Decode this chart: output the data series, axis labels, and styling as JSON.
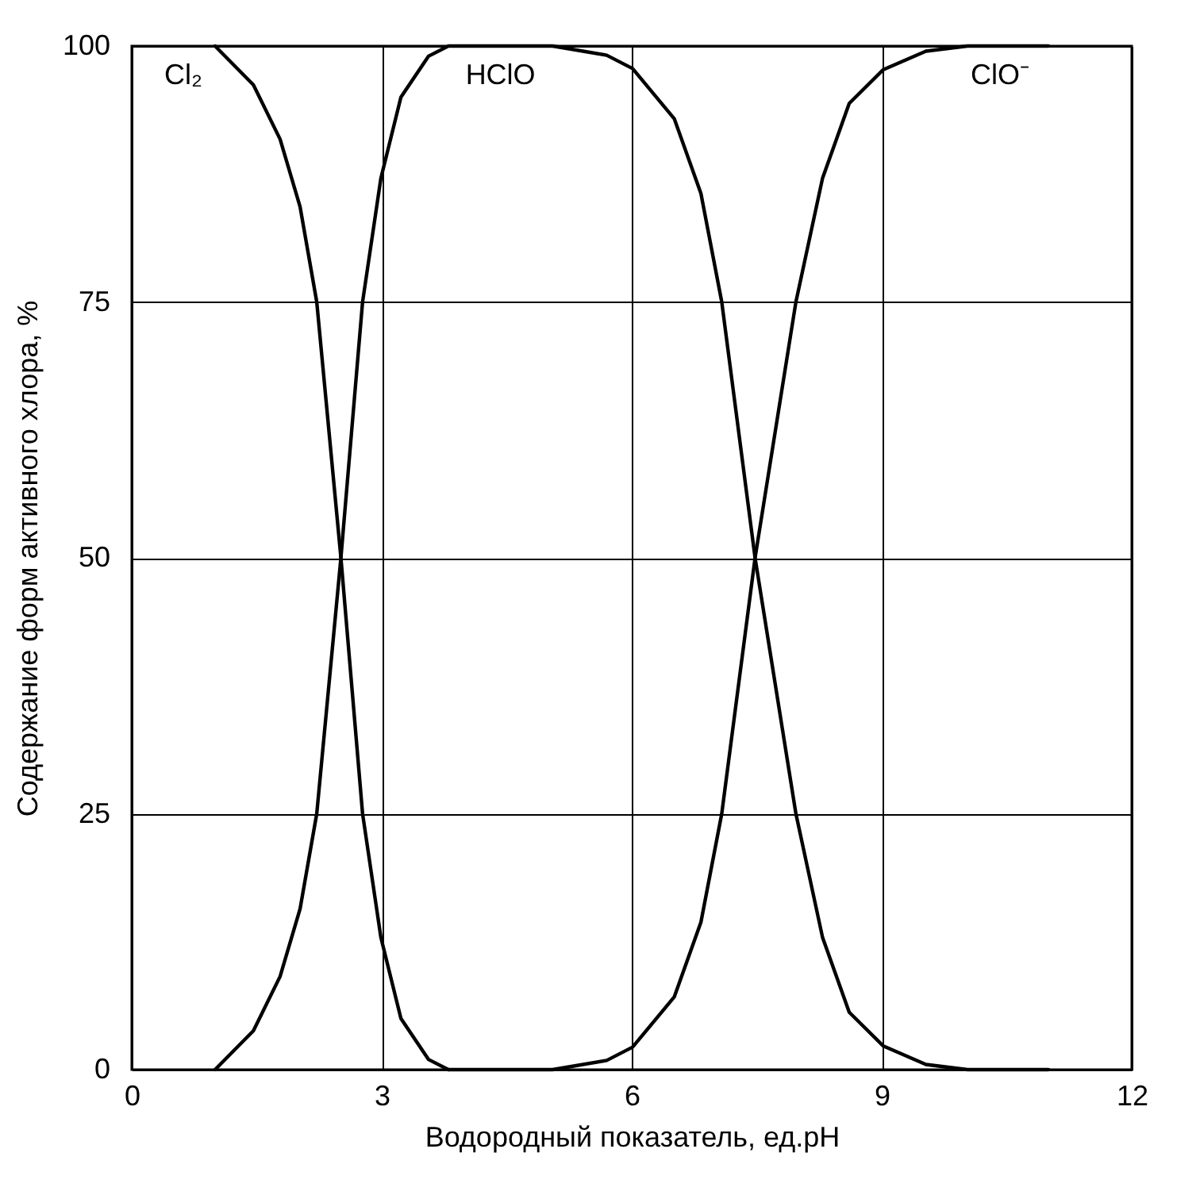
{
  "chart_data": {
    "type": "line",
    "xlabel": "Водородный показатель, ед.pH",
    "ylabel": "Содержание форм активного хлора, %",
    "xlim": [
      0,
      12
    ],
    "ylim": [
      0,
      100
    ],
    "xticks": [
      0,
      3,
      6,
      9,
      12
    ],
    "yticks": [
      0,
      25,
      50,
      75,
      100
    ],
    "grid": true,
    "line_style": "solid",
    "series": [
      {
        "name": "Cl₂",
        "color": "#000000",
        "x": [
          1.0,
          1.46,
          1.78,
          2.02,
          2.22,
          2.51,
          2.77,
          2.99,
          3.23,
          3.56,
          3.8
        ],
        "values": [
          100,
          96.2,
          90.9,
          84.3,
          75,
          50,
          25,
          12.9,
          5,
          1,
          0
        ]
      },
      {
        "name": "HClO",
        "color": "#000000",
        "x": [
          1.0,
          1.46,
          1.78,
          2.02,
          2.22,
          2.51,
          2.77,
          2.99,
          3.23,
          3.56,
          3.8,
          5.05,
          5.7,
          6.01,
          6.51,
          6.83,
          7.08,
          7.48,
          7.97,
          8.29,
          8.61,
          9.02,
          9.53,
          10.03,
          11.0
        ],
        "values": [
          0,
          3.8,
          9.1,
          15.7,
          25,
          50,
          75,
          87.1,
          95,
          99,
          100,
          100,
          99.1,
          97.8,
          92.9,
          85.6,
          75,
          50,
          25,
          12.9,
          5.6,
          2.3,
          0.5,
          0,
          0
        ]
      },
      {
        "name": "ClO⁻",
        "color": "#000000",
        "x": [
          3.8,
          5.05,
          5.7,
          6.01,
          6.51,
          6.83,
          7.08,
          7.48,
          7.97,
          8.29,
          8.61,
          9.02,
          9.53,
          10.03,
          11.0
        ],
        "values": [
          0,
          0,
          0.9,
          2.2,
          7.1,
          14.4,
          25,
          50,
          75,
          87.1,
          94.4,
          97.7,
          99.5,
          100,
          100
        ]
      }
    ]
  }
}
